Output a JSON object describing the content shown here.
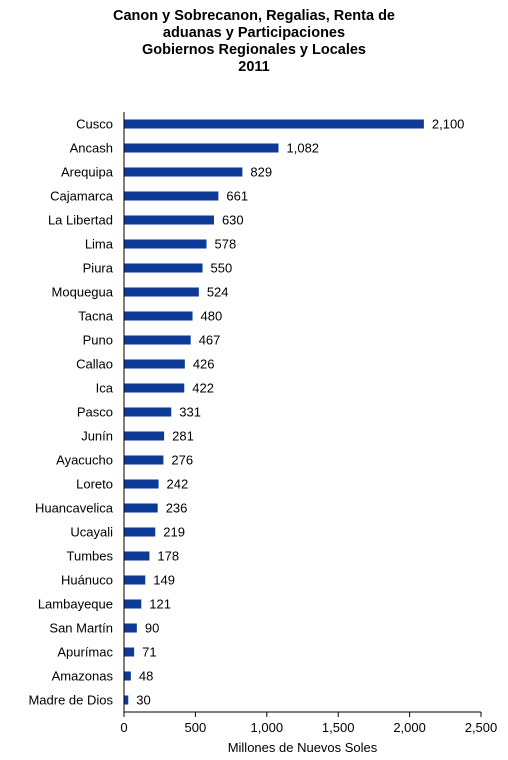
{
  "chart_data": {
    "type": "bar",
    "orientation": "horizontal",
    "title_lines": [
      "Canon y Sobrecanon, Regalias, Renta de",
      "aduanas y Participaciones",
      "Gobiernos Regionales y Locales",
      "2011"
    ],
    "xlabel": "Millones de Nuevos Soles",
    "ylabel": "",
    "xlim": [
      0,
      2500
    ],
    "xticks": [
      0,
      500,
      1000,
      1500,
      2000,
      2500
    ],
    "xtick_labels": [
      "0",
      "500",
      "1,000",
      "1,500",
      "2,000",
      "2,500"
    ],
    "grid": false,
    "bar_color": "#0d3a96",
    "categories": [
      "Cusco",
      "Ancash",
      "Arequipa",
      "Cajamarca",
      "La Libertad",
      "Lima",
      "Piura",
      "Moquegua",
      "Tacna",
      "Puno",
      "Callao",
      "Ica",
      "Pasco",
      "Junín",
      "Ayacucho",
      "Loreto",
      "Huancavelica",
      "Ucayali",
      "Tumbes",
      "Huánuco",
      "Lambayeque",
      "San Martín",
      "Apurímac",
      "Amazonas",
      "Madre de Dios"
    ],
    "values": [
      2100,
      1082,
      829,
      661,
      630,
      578,
      550,
      524,
      480,
      467,
      426,
      422,
      331,
      281,
      276,
      242,
      236,
      219,
      178,
      149,
      121,
      90,
      71,
      48,
      30
    ],
    "value_labels": [
      "2,100",
      "1,082",
      "829",
      "661",
      "630",
      "578",
      "550",
      "524",
      "480",
      "467",
      "426",
      "422",
      "331",
      "281",
      "276",
      "242",
      "236",
      "219",
      "178",
      "149",
      "121",
      "90",
      "71",
      "48",
      "30"
    ]
  }
}
